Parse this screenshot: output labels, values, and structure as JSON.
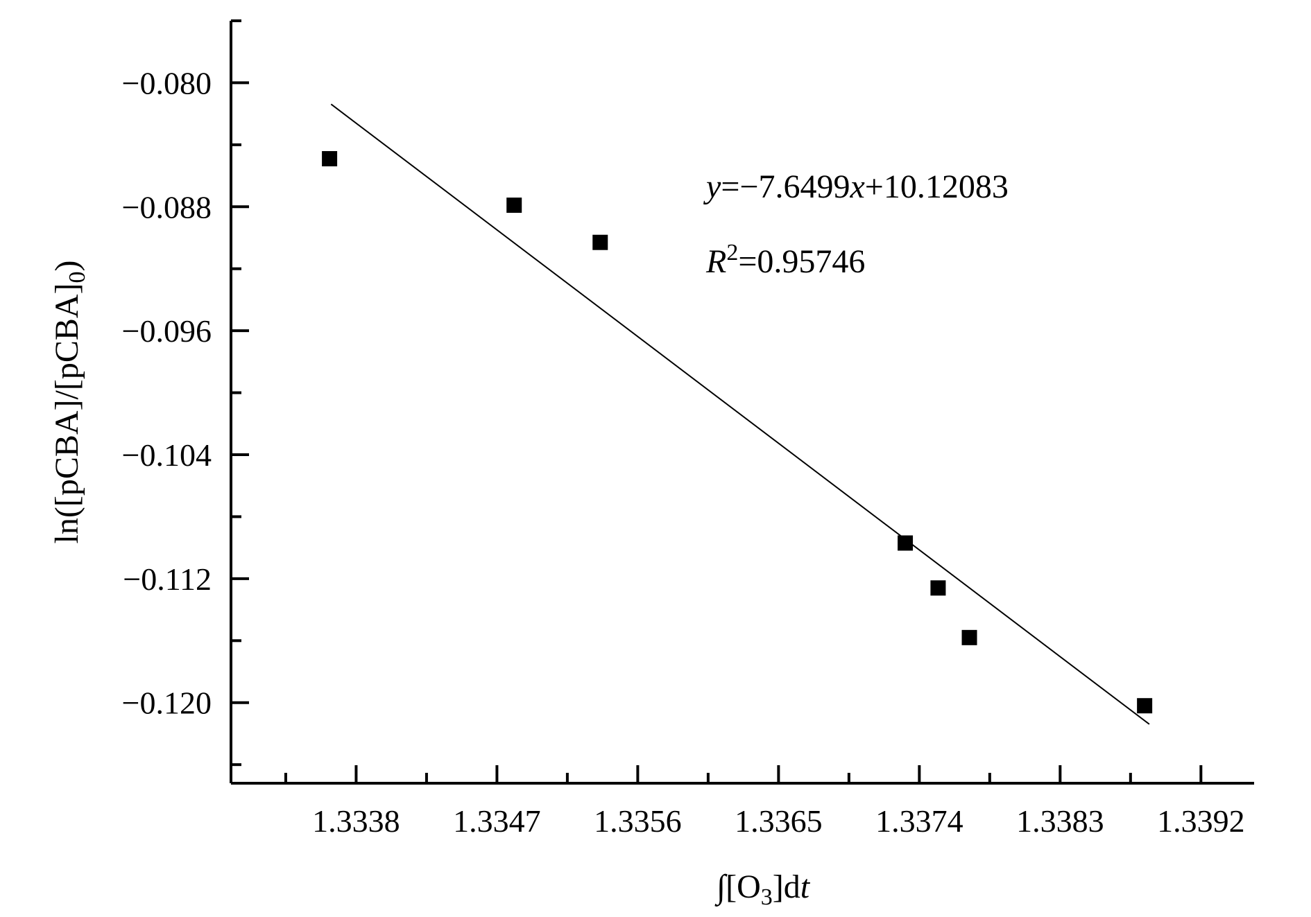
{
  "chart_data": {
    "type": "scatter",
    "title": "",
    "xlabel": "∫[O3]dt",
    "ylabel": "ln([pCBA]/[pCBA]0)",
    "x_ticks": [
      "1.3338",
      "1.3347",
      "1.3356",
      "1.3365",
      "1.3374",
      "1.3383",
      "1.3392"
    ],
    "y_ticks": [
      "−0.080",
      "−0.088",
      "−0.096",
      "−0.104",
      "−0.112",
      "−0.120"
    ],
    "xlim": [
      1.333,
      1.33954
    ],
    "ylim": [
      -0.1252,
      -0.076
    ],
    "grid": false,
    "legend": "none",
    "series": [
      {
        "marker": "square",
        "color": "#000000",
        "points": [
          {
            "x": 1.33363,
            "y": -0.0849
          },
          {
            "x": 1.33481,
            "y": -0.0879
          },
          {
            "x": 1.33536,
            "y": -0.0903
          },
          {
            "x": 1.33731,
            "y": -0.1097
          },
          {
            "x": 1.33752,
            "y": -0.1126
          },
          {
            "x": 1.33772,
            "y": -0.1158
          },
          {
            "x": 1.33884,
            "y": -0.1202
          }
        ]
      }
    ],
    "fit_line": {
      "slope": -7.6499,
      "intercept": 10.12083,
      "x_start": 1.33364,
      "x_end": 1.33887,
      "color": "#000000"
    },
    "annotations": {
      "equation": "y=−7.6499x+10.12083",
      "r_squared": "R2=0.95746"
    }
  }
}
